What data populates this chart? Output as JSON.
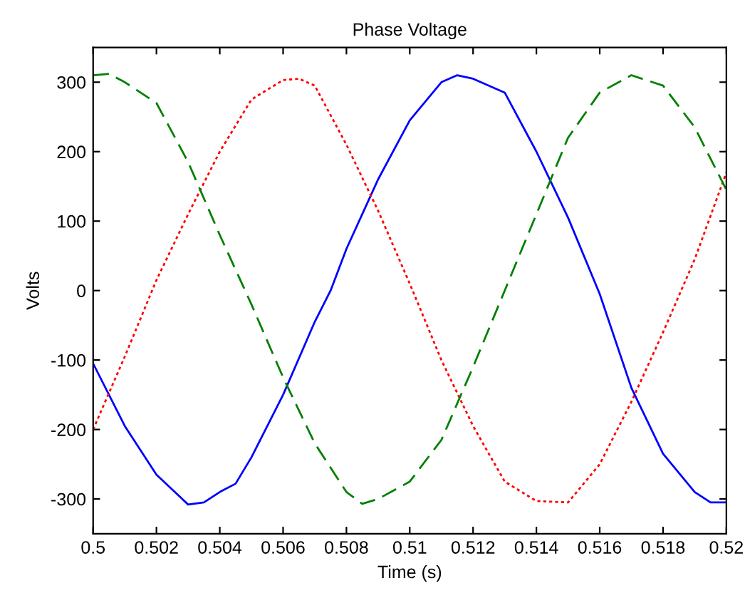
{
  "chart_data": {
    "type": "line",
    "title": "Phase Voltage",
    "xlabel": "Time (s)",
    "ylabel": "Volts",
    "xlim": [
      0.5,
      0.52
    ],
    "ylim": [
      -350,
      350
    ],
    "xticks": [
      {
        "value": 0.5,
        "label": "0.5"
      },
      {
        "value": 0.502,
        "label": "0.502"
      },
      {
        "value": 0.504,
        "label": "0.504"
      },
      {
        "value": 0.506,
        "label": "0.506"
      },
      {
        "value": 0.508,
        "label": "0.508"
      },
      {
        "value": 0.51,
        "label": "0.51"
      },
      {
        "value": 0.512,
        "label": "0.512"
      },
      {
        "value": 0.514,
        "label": "0.514"
      },
      {
        "value": 0.516,
        "label": "0.516"
      },
      {
        "value": 0.518,
        "label": "0.518"
      },
      {
        "value": 0.52,
        "label": "0.52"
      }
    ],
    "yticks": [
      -300,
      -200,
      -100,
      0,
      100,
      200,
      300
    ],
    "grid": false,
    "marker": "none",
    "series": [
      {
        "color": "#0000ff",
        "line_style": "solid",
        "x": [
          0.5,
          0.501,
          0.502,
          0.503,
          0.5035,
          0.504,
          0.5045,
          0.505,
          0.506,
          0.507,
          0.5075,
          0.508,
          0.509,
          0.51,
          0.511,
          0.5115,
          0.512,
          0.513,
          0.514,
          0.515,
          0.516,
          0.517,
          0.518,
          0.519,
          0.5195,
          0.52
        ],
        "values": [
          -105,
          -195,
          -265,
          -308,
          -305,
          -290,
          -278,
          -240,
          -150,
          -45,
          0,
          60,
          160,
          245,
          300,
          310,
          305,
          285,
          200,
          105,
          -5,
          -140,
          -235,
          -290,
          -305,
          -305
        ]
      },
      {
        "color": "#ff0000",
        "line_style": "dotted",
        "x": [
          0.5,
          0.501,
          0.502,
          0.503,
          0.504,
          0.505,
          0.506,
          0.5065,
          0.507,
          0.508,
          0.509,
          0.51,
          0.511,
          0.512,
          0.513,
          0.514,
          0.515,
          0.516,
          0.517,
          0.518,
          0.519,
          0.52
        ],
        "values": [
          -200,
          -95,
          15,
          110,
          200,
          275,
          303,
          305,
          295,
          210,
          115,
          10,
          -100,
          -195,
          -275,
          -303,
          -305,
          -250,
          -160,
          -60,
          45,
          170
        ]
      },
      {
        "color": "#008000",
        "line_style": "dashed",
        "x": [
          0.5,
          0.5005,
          0.501,
          0.502,
          0.503,
          0.504,
          0.505,
          0.506,
          0.507,
          0.508,
          0.5085,
          0.509,
          0.51,
          0.511,
          0.512,
          0.513,
          0.514,
          0.515,
          0.516,
          0.517,
          0.518,
          0.519,
          0.52
        ],
        "values": [
          310,
          312,
          300,
          270,
          185,
          80,
          -20,
          -125,
          -220,
          -290,
          -307,
          -300,
          -275,
          -215,
          -110,
          0,
          110,
          220,
          285,
          310,
          295,
          235,
          145
        ]
      }
    ]
  }
}
